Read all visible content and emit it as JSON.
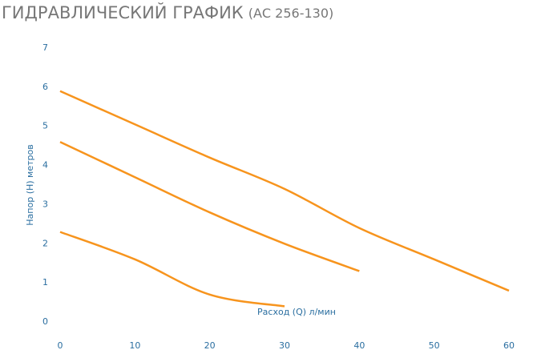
{
  "chart_data": {
    "type": "line",
    "title": "ГИДРАВЛИЧЕСКИЙ ГРАФИК",
    "subtitle": "(АС 256-130)",
    "x_label": "Расход (Q) л/мин",
    "y_label": "Напор (H) метров",
    "xlim": [
      0,
      60
    ],
    "xticks": [
      0,
      10,
      20,
      30,
      40,
      50,
      60
    ],
    "ylim": [
      0,
      7
    ],
    "yticks": [
      0,
      1,
      2,
      3,
      4,
      5,
      6,
      7
    ],
    "grid": false,
    "series": [
      {
        "color": "#f7941d",
        "x": [
          0,
          10,
          20,
          30,
          40,
          50,
          60
        ],
        "values": [
          5.9,
          5.05,
          4.2,
          3.4,
          2.4,
          1.6,
          0.8
        ]
      },
      {
        "color": "#f7941d",
        "x": [
          0,
          10,
          20,
          30,
          40
        ],
        "values": [
          4.6,
          3.7,
          2.8,
          2.0,
          1.3
        ]
      },
      {
        "color": "#f7941d",
        "x": [
          0,
          10,
          20,
          30
        ],
        "values": [
          2.3,
          1.6,
          0.7,
          0.4
        ]
      }
    ]
  }
}
